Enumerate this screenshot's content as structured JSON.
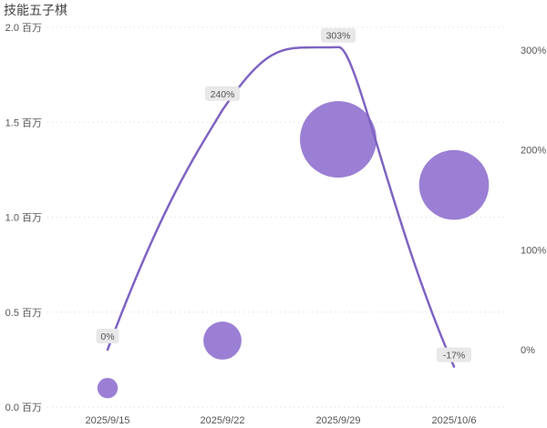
{
  "title": "技能五子棋",
  "side_label": "",
  "colors": {
    "bubble": "#9b7fd4",
    "line": "#7f63c2",
    "grid": "#d9d9d9",
    "label_bg": "#e8e8e8",
    "text": "#555555"
  },
  "chart_data": {
    "type": "scatter",
    "title": "技能五子棋",
    "categories": [
      "2025/9/15",
      "2025/9/22",
      "2025/9/29",
      "2025/10/6"
    ],
    "y_left": {
      "min": 0,
      "max": 2.0,
      "ticks": [
        0,
        0.5,
        1.0,
        1.5,
        2.0
      ],
      "tick_labels": [
        "0.0 百万",
        "0.5 百万",
        "1.0 百万",
        "1.5 百万",
        "2.0 百万"
      ]
    },
    "y_right": {
      "min": -0.65,
      "max": 3.25,
      "ticks": [
        0,
        1,
        2,
        3
      ],
      "tick_labels": [
        "0%",
        "100%",
        "200%",
        "300%"
      ]
    },
    "bubbles": {
      "values": [
        0.1,
        0.35,
        1.41,
        1.17
      ],
      "sizes": [
        0.1,
        0.35,
        1.41,
        1.17
      ]
    },
    "growth": {
      "values": [
        0.0,
        2.4,
        3.03,
        -0.17
      ],
      "labels": [
        "0%",
        "240%",
        "303%",
        "-17%"
      ]
    },
    "grid": true,
    "legend": "none"
  }
}
